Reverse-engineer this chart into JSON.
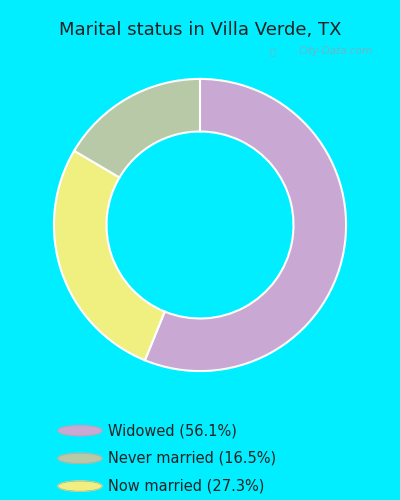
{
  "title": "Marital status in Villa Verde, TX",
  "slices": [
    {
      "label": "Widowed (56.1%)",
      "value": 56.1,
      "color": "#c9a8d4"
    },
    {
      "label": "Now married (27.3%)",
      "value": 27.3,
      "color": "#f0f080"
    },
    {
      "label": "Never married (16.5%)",
      "value": 16.5,
      "color": "#b8c9a8"
    }
  ],
  "bg_color": "#00eeff",
  "chart_bg_color": "#dff0e8",
  "donut_width": 0.36,
  "title_fontsize": 13,
  "title_color": "#222222",
  "legend_fontsize": 10.5,
  "watermark": "City-Data.com"
}
